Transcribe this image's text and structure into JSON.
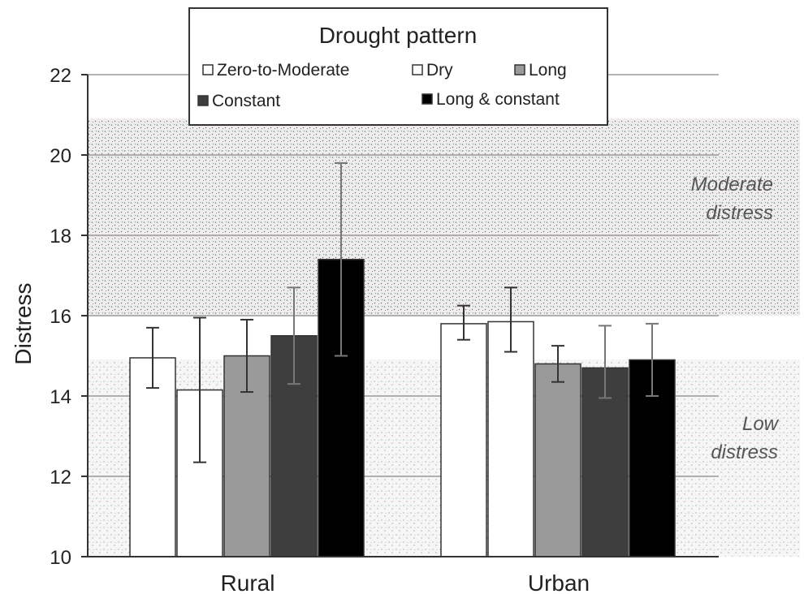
{
  "chart_data": {
    "type": "bar",
    "ylabel": "Distress",
    "ylim": [
      10,
      22
    ],
    "yticks": [
      "10",
      "12",
      "14",
      "16",
      "18",
      "20",
      "22"
    ],
    "grid": true,
    "categories": [
      "Rural",
      "Urban"
    ],
    "legend": {
      "title": "Drought pattern",
      "placement": "top-center"
    },
    "series": [
      {
        "name": "Zero-to-Moderate",
        "color": "#ffffff",
        "values": [
          14.95,
          15.8
        ],
        "error_low": [
          14.2,
          15.4
        ],
        "error_high": [
          15.7,
          16.25
        ]
      },
      {
        "name": "Dry",
        "color": "#ffffff",
        "values": [
          14.15,
          15.85
        ],
        "error_low": [
          12.35,
          15.1
        ],
        "error_high": [
          15.95,
          16.7
        ]
      },
      {
        "name": "Long",
        "color": "#9a9a9a",
        "values": [
          15.0,
          14.8
        ],
        "error_low": [
          14.1,
          14.35
        ],
        "error_high": [
          15.9,
          15.25
        ]
      },
      {
        "name": "Constant",
        "color": "#3e3e3e",
        "values": [
          15.5,
          14.7
        ],
        "error_low": [
          14.3,
          13.95
        ],
        "error_high": [
          16.7,
          15.75
        ]
      },
      {
        "name": "Long & constant",
        "color": "#000000",
        "values": [
          17.4,
          14.9
        ],
        "error_low": [
          15.0,
          14.0
        ],
        "error_high": [
          19.8,
          15.8
        ]
      }
    ],
    "bands": [
      {
        "label": "Moderate\ndistress",
        "from": 16,
        "to": 20.9
      },
      {
        "label": "Low\ndistress",
        "from": 10,
        "to": 14.9
      }
    ]
  }
}
